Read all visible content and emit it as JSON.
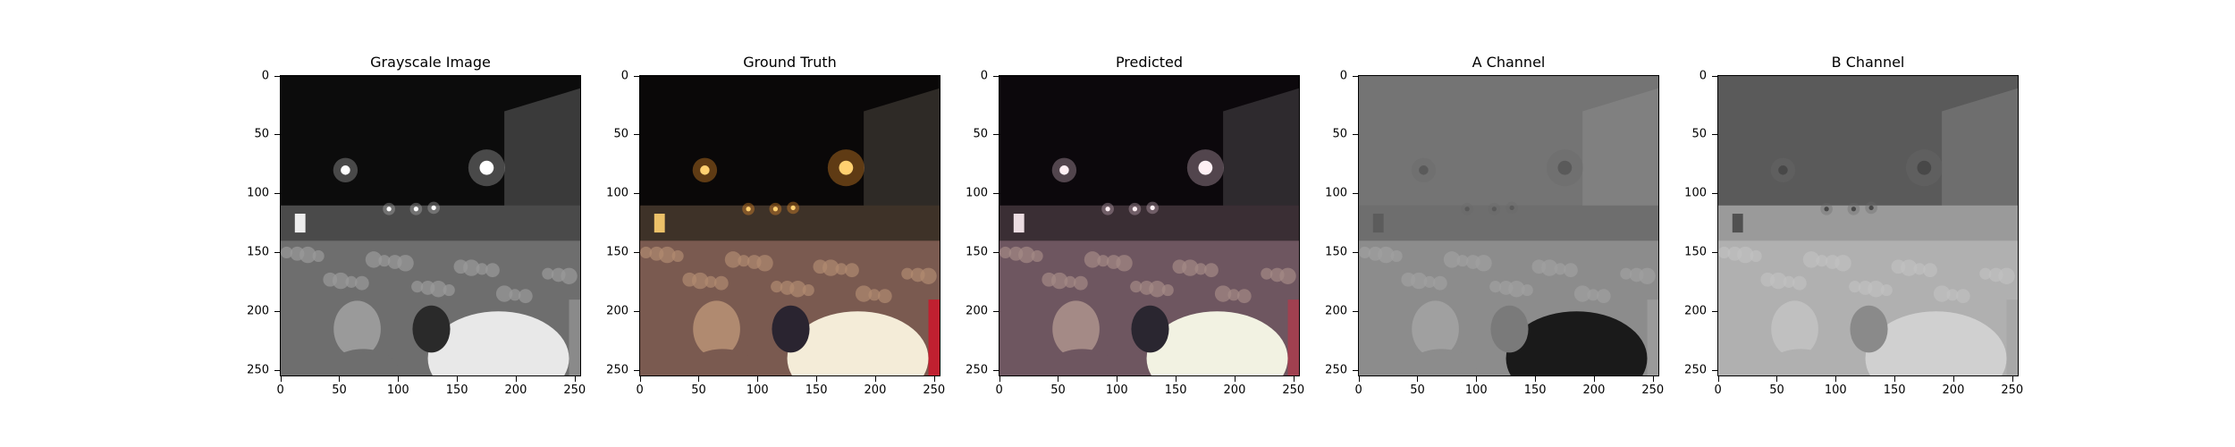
{
  "figure": {
    "panels": [
      {
        "id": "grayscale",
        "title": "Grayscale Image",
        "variant": "gray"
      },
      {
        "id": "ground-truth",
        "title": "Ground Truth",
        "variant": "color"
      },
      {
        "id": "predicted",
        "title": "Predicted",
        "variant": "pred"
      },
      {
        "id": "a-channel",
        "title": "A Channel",
        "variant": "channelA"
      },
      {
        "id": "b-channel",
        "title": "B Channel",
        "variant": "channelB"
      }
    ],
    "x_ticks": [
      "0",
      "50",
      "100",
      "150",
      "200",
      "250"
    ],
    "y_ticks": [
      "0",
      "50",
      "100",
      "150",
      "200",
      "250"
    ],
    "axis_range": [
      0,
      256
    ]
  }
}
